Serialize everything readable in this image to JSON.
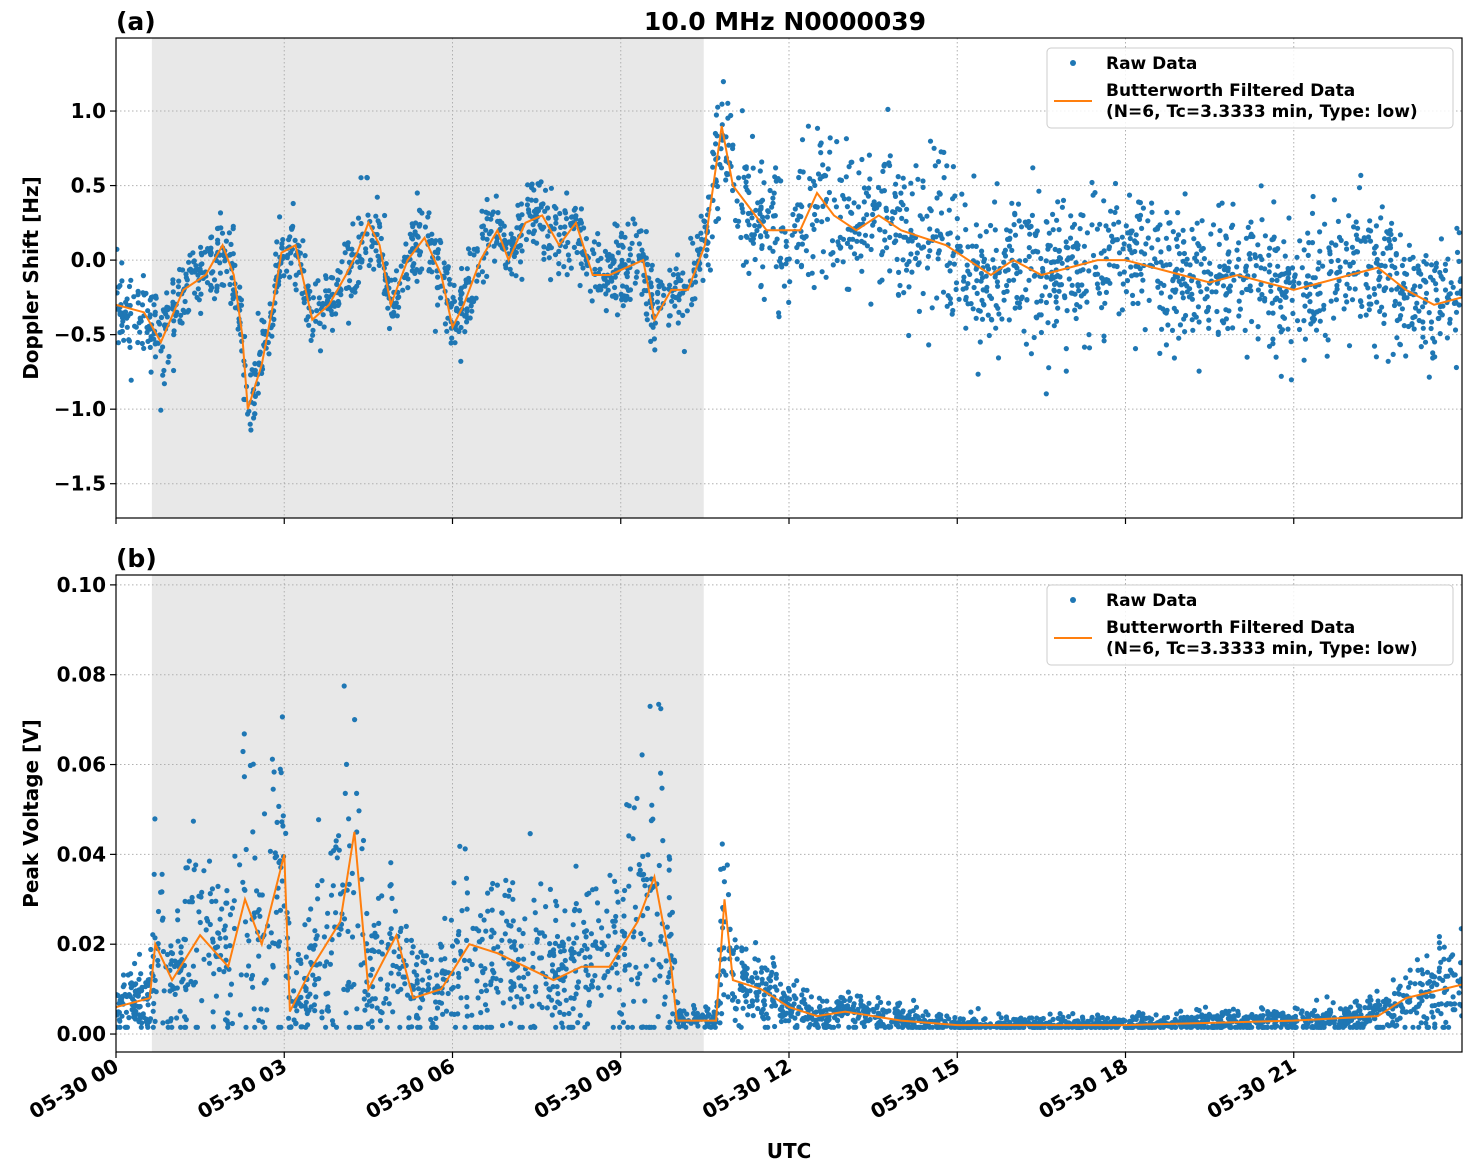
{
  "chart_data": {
    "title": "10.0 MHz N0000039",
    "type": "scatter+line",
    "xlabel": "UTC",
    "x_unit": "hours of 05-30",
    "xlim": [
      0,
      24
    ],
    "x_ticks": [
      0,
      3,
      6,
      9,
      12,
      15,
      18,
      21
    ],
    "x_tick_labels": [
      "05-30 00",
      "05-30 03",
      "05-30 06",
      "05-30 09",
      "05-30 12",
      "05-30 15",
      "05-30 18",
      "05-30 21"
    ],
    "shaded_region": {
      "x": [
        0.64,
        10.48
      ],
      "color": "#e8e8e8"
    },
    "grid": true,
    "colors": {
      "raw": "#1f77b4",
      "filtered": "#ff7f0e"
    },
    "legend": {
      "placement": "top-right",
      "entries": [
        "Raw Data",
        "Butterworth Filtered Data",
        "(N=6, Tc=3.3333 min, Type: low)"
      ]
    },
    "panels": [
      {
        "label": "(a)",
        "ylabel": "Doppler Shift [Hz]",
        "ylim": [
          -1.73,
          1.49
        ],
        "y_ticks": [
          1.0,
          0.5,
          0.0,
          -0.5,
          -1.0,
          -1.5
        ],
        "y_tick_labels": [
          "1.0",
          "0.5",
          "0.0",
          "−0.5",
          "−1.0",
          "−1.5"
        ],
        "filtered": [
          [
            0,
            -0.3
          ],
          [
            0.5,
            -0.35
          ],
          [
            0.8,
            -0.55
          ],
          [
            1.2,
            -0.2
          ],
          [
            1.6,
            -0.1
          ],
          [
            1.9,
            0.1
          ],
          [
            2.1,
            -0.1
          ],
          [
            2.25,
            -0.5
          ],
          [
            2.35,
            -1.0
          ],
          [
            2.6,
            -0.7
          ],
          [
            2.8,
            -0.3
          ],
          [
            2.95,
            0.05
          ],
          [
            3.2,
            0.1
          ],
          [
            3.5,
            -0.4
          ],
          [
            3.8,
            -0.3
          ],
          [
            4.1,
            -0.1
          ],
          [
            4.3,
            0.05
          ],
          [
            4.5,
            0.25
          ],
          [
            4.7,
            0.1
          ],
          [
            4.9,
            -0.3
          ],
          [
            5.2,
            0.0
          ],
          [
            5.5,
            0.15
          ],
          [
            5.8,
            -0.1
          ],
          [
            6.0,
            -0.45
          ],
          [
            6.2,
            -0.3
          ],
          [
            6.5,
            0.0
          ],
          [
            6.8,
            0.2
          ],
          [
            7.0,
            0.0
          ],
          [
            7.3,
            0.25
          ],
          [
            7.6,
            0.3
          ],
          [
            7.9,
            0.1
          ],
          [
            8.2,
            0.25
          ],
          [
            8.5,
            -0.1
          ],
          [
            8.8,
            -0.1
          ],
          [
            9.1,
            -0.05
          ],
          [
            9.4,
            0.0
          ],
          [
            9.6,
            -0.4
          ],
          [
            9.9,
            -0.2
          ],
          [
            10.2,
            -0.2
          ],
          [
            10.5,
            0.1
          ],
          [
            10.8,
            0.9
          ],
          [
            11.0,
            0.5
          ],
          [
            11.3,
            0.35
          ],
          [
            11.6,
            0.2
          ],
          [
            11.9,
            0.2
          ],
          [
            12.2,
            0.2
          ],
          [
            12.5,
            0.45
          ],
          [
            12.8,
            0.3
          ],
          [
            13.2,
            0.2
          ],
          [
            13.6,
            0.3
          ],
          [
            14.0,
            0.2
          ],
          [
            14.4,
            0.15
          ],
          [
            14.8,
            0.1
          ],
          [
            15.2,
            0.0
          ],
          [
            15.6,
            -0.1
          ],
          [
            16.0,
            0.0
          ],
          [
            16.5,
            -0.1
          ],
          [
            17.0,
            -0.05
          ],
          [
            17.5,
            0.0
          ],
          [
            18.0,
            0.0
          ],
          [
            18.5,
            -0.05
          ],
          [
            19.0,
            -0.1
          ],
          [
            19.5,
            -0.15
          ],
          [
            20.0,
            -0.1
          ],
          [
            20.5,
            -0.15
          ],
          [
            21.0,
            -0.2
          ],
          [
            21.5,
            -0.15
          ],
          [
            22.0,
            -0.1
          ],
          [
            22.5,
            -0.05
          ],
          [
            23.0,
            -0.2
          ],
          [
            23.5,
            -0.3
          ],
          [
            24,
            -0.25
          ]
        ],
        "raw_spread": [
          [
            0,
            0.25
          ],
          [
            10.5,
            0.25
          ],
          [
            10.6,
            0.4
          ],
          [
            15,
            0.45
          ],
          [
            24,
            0.4
          ]
        ],
        "raw_spread_mode": "additive"
      },
      {
        "label": "(b)",
        "ylabel": "Peak Voltage [V]",
        "ylim": [
          -0.004,
          0.1022
        ],
        "y_ticks": [
          0.0,
          0.02,
          0.04,
          0.06,
          0.08,
          0.1
        ],
        "y_tick_labels": [
          "0.00",
          "0.02",
          "0.04",
          "0.06",
          "0.08",
          "0.10"
        ],
        "filtered": [
          [
            0,
            0.006
          ],
          [
            0.6,
            0.008
          ],
          [
            0.7,
            0.02
          ],
          [
            1,
            0.012
          ],
          [
            1.5,
            0.022
          ],
          [
            2,
            0.015
          ],
          [
            2.3,
            0.03
          ],
          [
            2.6,
            0.02
          ],
          [
            3.0,
            0.04
          ],
          [
            3.1,
            0.005
          ],
          [
            3.5,
            0.015
          ],
          [
            4.0,
            0.025
          ],
          [
            4.25,
            0.045
          ],
          [
            4.5,
            0.01
          ],
          [
            5.0,
            0.022
          ],
          [
            5.3,
            0.008
          ],
          [
            5.8,
            0.01
          ],
          [
            6.3,
            0.02
          ],
          [
            6.8,
            0.018
          ],
          [
            7.3,
            0.015
          ],
          [
            7.8,
            0.012
          ],
          [
            8.3,
            0.015
          ],
          [
            8.8,
            0.015
          ],
          [
            9.3,
            0.025
          ],
          [
            9.6,
            0.035
          ],
          [
            9.9,
            0.015
          ],
          [
            10.0,
            0.003
          ],
          [
            10.7,
            0.003
          ],
          [
            10.85,
            0.03
          ],
          [
            11.0,
            0.012
          ],
          [
            11.5,
            0.01
          ],
          [
            12.0,
            0.006
          ],
          [
            12.5,
            0.004
          ],
          [
            13,
            0.005
          ],
          [
            14,
            0.003
          ],
          [
            15,
            0.002
          ],
          [
            18,
            0.002
          ],
          [
            21,
            0.003
          ],
          [
            22.5,
            0.004
          ],
          [
            23,
            0.008
          ],
          [
            24,
            0.011
          ]
        ],
        "raw_spread": [
          [
            0,
            0.7
          ],
          [
            10,
            0.7
          ],
          [
            10.1,
            0.5
          ],
          [
            24,
            0.6
          ]
        ],
        "raw_spread_mode": "relative"
      }
    ]
  }
}
